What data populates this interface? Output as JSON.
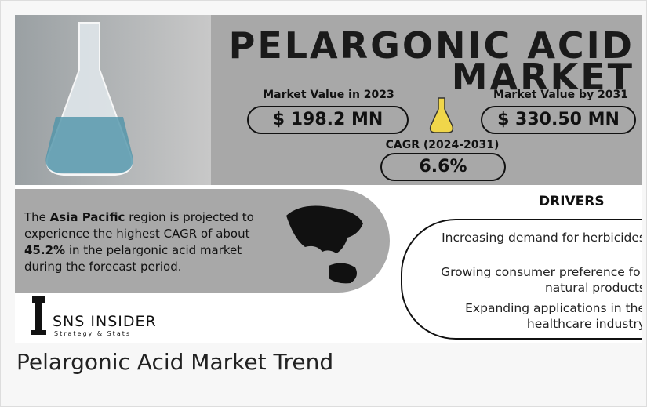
{
  "infographic": {
    "title_lines": [
      "PELARGONIC ACID",
      "MARKET"
    ],
    "value_2023": {
      "label": "Market Value in 2023",
      "value": "$ 198.2 MN"
    },
    "value_2031": {
      "label": "Market Value by 2031",
      "value": "$ 330.50 MN"
    },
    "cagr": {
      "label": "CAGR (2024-2031)",
      "value": "6.6%"
    },
    "region_text": [
      "The ",
      "Asia Pacific",
      " region is projected to experience the highest CAGR of about ",
      "45.2%",
      " in the pelargonic acid market during the forecast period."
    ],
    "drivers": {
      "heading": "DRIVERS",
      "items": [
        "Increasing demand for herbicides",
        "Growing consumer preference for natural products",
        "Expanding applications in the healthcare industry"
      ]
    },
    "logo": {
      "name": "SNS INSIDER",
      "tagline": "Strategy & Stats"
    }
  },
  "caption": "Pelargonic Acid Market Trend"
}
